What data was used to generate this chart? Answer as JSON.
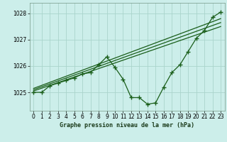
{
  "title": "Graphe pression niveau de la mer (hPa)",
  "background_color": "#cceeea",
  "grid_color": "#aad4cc",
  "line_color": "#1a5e1a",
  "xlim": [
    -0.5,
    23.5
  ],
  "ylim": [
    1024.3,
    1028.4
  ],
  "yticks": [
    1025,
    1026,
    1027,
    1028
  ],
  "xticks": [
    0,
    1,
    2,
    3,
    4,
    5,
    6,
    7,
    8,
    9,
    10,
    11,
    12,
    13,
    14,
    15,
    16,
    17,
    18,
    19,
    20,
    21,
    22,
    23
  ],
  "main_series": [
    [
      0,
      1025.0
    ],
    [
      1,
      1025.0
    ],
    [
      2,
      1025.25
    ],
    [
      3,
      1025.35
    ],
    [
      4,
      1025.45
    ],
    [
      5,
      1025.55
    ],
    [
      6,
      1025.7
    ],
    [
      7,
      1025.75
    ],
    [
      8,
      1026.05
    ],
    [
      9,
      1026.35
    ],
    [
      10,
      1025.95
    ],
    [
      11,
      1025.5
    ],
    [
      12,
      1024.8
    ],
    [
      13,
      1024.8
    ],
    [
      14,
      1024.55
    ],
    [
      15,
      1024.6
    ],
    [
      16,
      1025.2
    ],
    [
      17,
      1025.75
    ],
    [
      18,
      1026.05
    ],
    [
      19,
      1026.55
    ],
    [
      20,
      1027.05
    ],
    [
      21,
      1027.35
    ],
    [
      22,
      1027.85
    ],
    [
      23,
      1028.05
    ]
  ],
  "trend_series": [
    [
      [
        0,
        1025.05
      ],
      [
        23,
        1027.5
      ]
    ],
    [
      [
        0,
        1025.1
      ],
      [
        23,
        1027.65
      ]
    ],
    [
      [
        0,
        1025.15
      ],
      [
        23,
        1027.8
      ]
    ]
  ]
}
